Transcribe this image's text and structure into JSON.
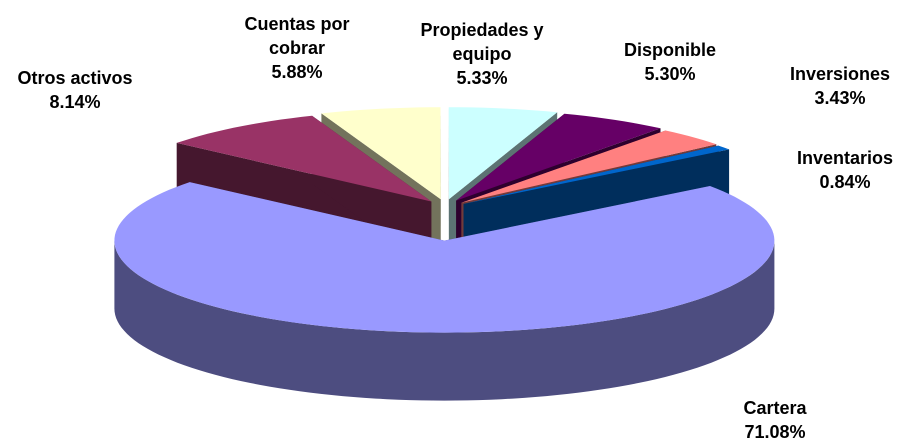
{
  "chart_data": {
    "type": "pie3d",
    "categories": [
      "Otros activos",
      "Cuentas por cobrar",
      "Propiedades y equipo",
      "Disponible",
      "Inversiones",
      "Inventarios",
      "Cartera"
    ],
    "values": [
      8.14,
      5.88,
      5.33,
      5.3,
      3.43,
      0.84,
      71.08
    ],
    "value_labels": [
      "8.14%",
      "5.88%",
      "5.33%",
      "5.30%",
      "3.43%",
      "0.84%",
      "71.08%"
    ],
    "colors": [
      "#993366",
      "#ffffcc",
      "#ccffff",
      "#660066",
      "#ff8080",
      "#0066cc",
      "#9999ff"
    ]
  }
}
